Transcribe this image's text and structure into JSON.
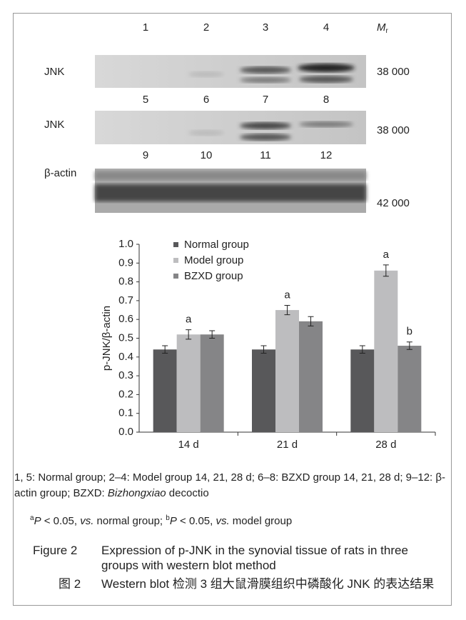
{
  "blots": {
    "rows": [
      {
        "lanes": [
          "1",
          "2",
          "3",
          "4"
        ],
        "protein": "JNK",
        "mr": "38 000"
      },
      {
        "lanes": [
          "5",
          "6",
          "7",
          "8"
        ],
        "protein": "JNK",
        "mr": "38 000"
      },
      {
        "lanes": [
          "9",
          "10",
          "11",
          "12"
        ],
        "protein": "β-actin",
        "mr": "42 000"
      }
    ],
    "mr_header": {
      "main": "M",
      "sub": "r"
    }
  },
  "chart_data": {
    "type": "bar",
    "y_label": "p-JNK/β-actin",
    "categories": [
      "14 d",
      "21 d",
      "28 d"
    ],
    "series": [
      {
        "name": "Normal group",
        "color": "#58585a",
        "values": [
          0.44,
          0.44,
          0.44
        ],
        "errors": [
          0.02,
          0.02,
          0.02
        ]
      },
      {
        "name": "Model group",
        "color": "#bdbdbf",
        "values": [
          0.52,
          0.65,
          0.86
        ],
        "errors": [
          0.025,
          0.025,
          0.03
        ],
        "markers": [
          "a",
          "a",
          "a"
        ]
      },
      {
        "name": "BZXD group",
        "color": "#858587",
        "values": [
          0.52,
          0.59,
          0.46
        ],
        "errors": [
          0.02,
          0.025,
          0.02
        ],
        "markers": [
          null,
          null,
          "b"
        ]
      }
    ],
    "ylim": [
      0,
      1
    ],
    "yticks": [
      {
        "value": 0,
        "label": "0.0"
      },
      0.1,
      0.2,
      0.3,
      0.4,
      0.5,
      0.6,
      0.7,
      0.8,
      0.9,
      {
        "value": 1,
        "label": "1.0"
      }
    ],
    "legend": "upper-left"
  },
  "notes": [
    {
      "text": "1, 5: Normal group; 2–4: Model group 14, 21, 28 d; 6–8: BZXD group 14, 21, 28 d; 9–12: β-actin group; BZXD: ",
      "style": "normal"
    },
    {
      "text": "Bizhongxiao",
      "style": "italic"
    },
    {
      "text": " decoctio",
      "style": "normal"
    }
  ],
  "significance": [
    {
      "text": "a",
      "style": "sup"
    },
    {
      "text": "P",
      "style": "italic"
    },
    {
      "text": " < 0.05, ",
      "style": "normal"
    },
    {
      "text": "vs.",
      "style": "italic"
    },
    {
      "text": " normal group; ",
      "style": "normal"
    },
    {
      "text": "b",
      "style": "sup"
    },
    {
      "text": "P",
      "style": "italic"
    },
    {
      "text": " < 0.05, ",
      "style": "normal"
    },
    {
      "text": "vs.",
      "style": "italic"
    },
    {
      "text": " model group",
      "style": "normal"
    }
  ],
  "caption": {
    "en_label": "Figure 2",
    "en_text": "Expression of p-JNK in the synovial tissue of rats in three groups with western blot method",
    "zh_label": "图 2",
    "zh_text": "Western blot 检测 3 组大鼠滑膜组织中磷酸化 JNK 的表达结果"
  }
}
